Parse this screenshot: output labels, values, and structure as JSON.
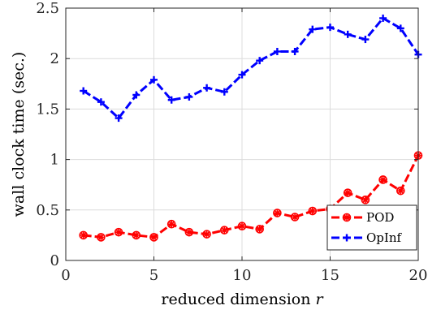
{
  "chart_data": {
    "type": "line",
    "xlabel": "reduced dimension",
    "xlabel_var": "r",
    "ylabel": "wall clock time (sec.)",
    "xlim": [
      0,
      20
    ],
    "ylim": [
      0,
      2.5
    ],
    "xticks": [
      0,
      5,
      10,
      15,
      20
    ],
    "yticks": [
      0,
      0.5,
      1,
      1.5,
      2,
      2.5
    ],
    "xtick_labels": [
      "0",
      "5",
      "10",
      "15",
      "20"
    ],
    "ytick_labels": [
      "0",
      "0.5",
      "1",
      "1.5",
      "2",
      "2.5"
    ],
    "grid": true,
    "legend_position": "bottom-right",
    "x": [
      1,
      2,
      3,
      4,
      5,
      6,
      7,
      8,
      9,
      10,
      11,
      12,
      13,
      14,
      15,
      16,
      17,
      18,
      19,
      20
    ],
    "series": [
      {
        "name": "POD",
        "color": "#ff0000",
        "marker": "asterisk-circle",
        "linestyle": "dashed",
        "values": [
          0.25,
          0.23,
          0.28,
          0.25,
          0.23,
          0.36,
          0.28,
          0.26,
          0.3,
          0.34,
          0.31,
          0.47,
          0.43,
          0.49,
          0.51,
          0.67,
          0.6,
          0.8,
          0.69,
          1.04
        ]
      },
      {
        "name": "OpInf",
        "color": "#0000ff",
        "marker": "plus",
        "linestyle": "dashed",
        "values": [
          1.68,
          1.57,
          1.41,
          1.64,
          1.79,
          1.59,
          1.62,
          1.71,
          1.67,
          1.84,
          1.98,
          2.07,
          2.07,
          2.29,
          2.31,
          2.24,
          2.19,
          2.4,
          2.3,
          2.04
        ]
      }
    ]
  }
}
